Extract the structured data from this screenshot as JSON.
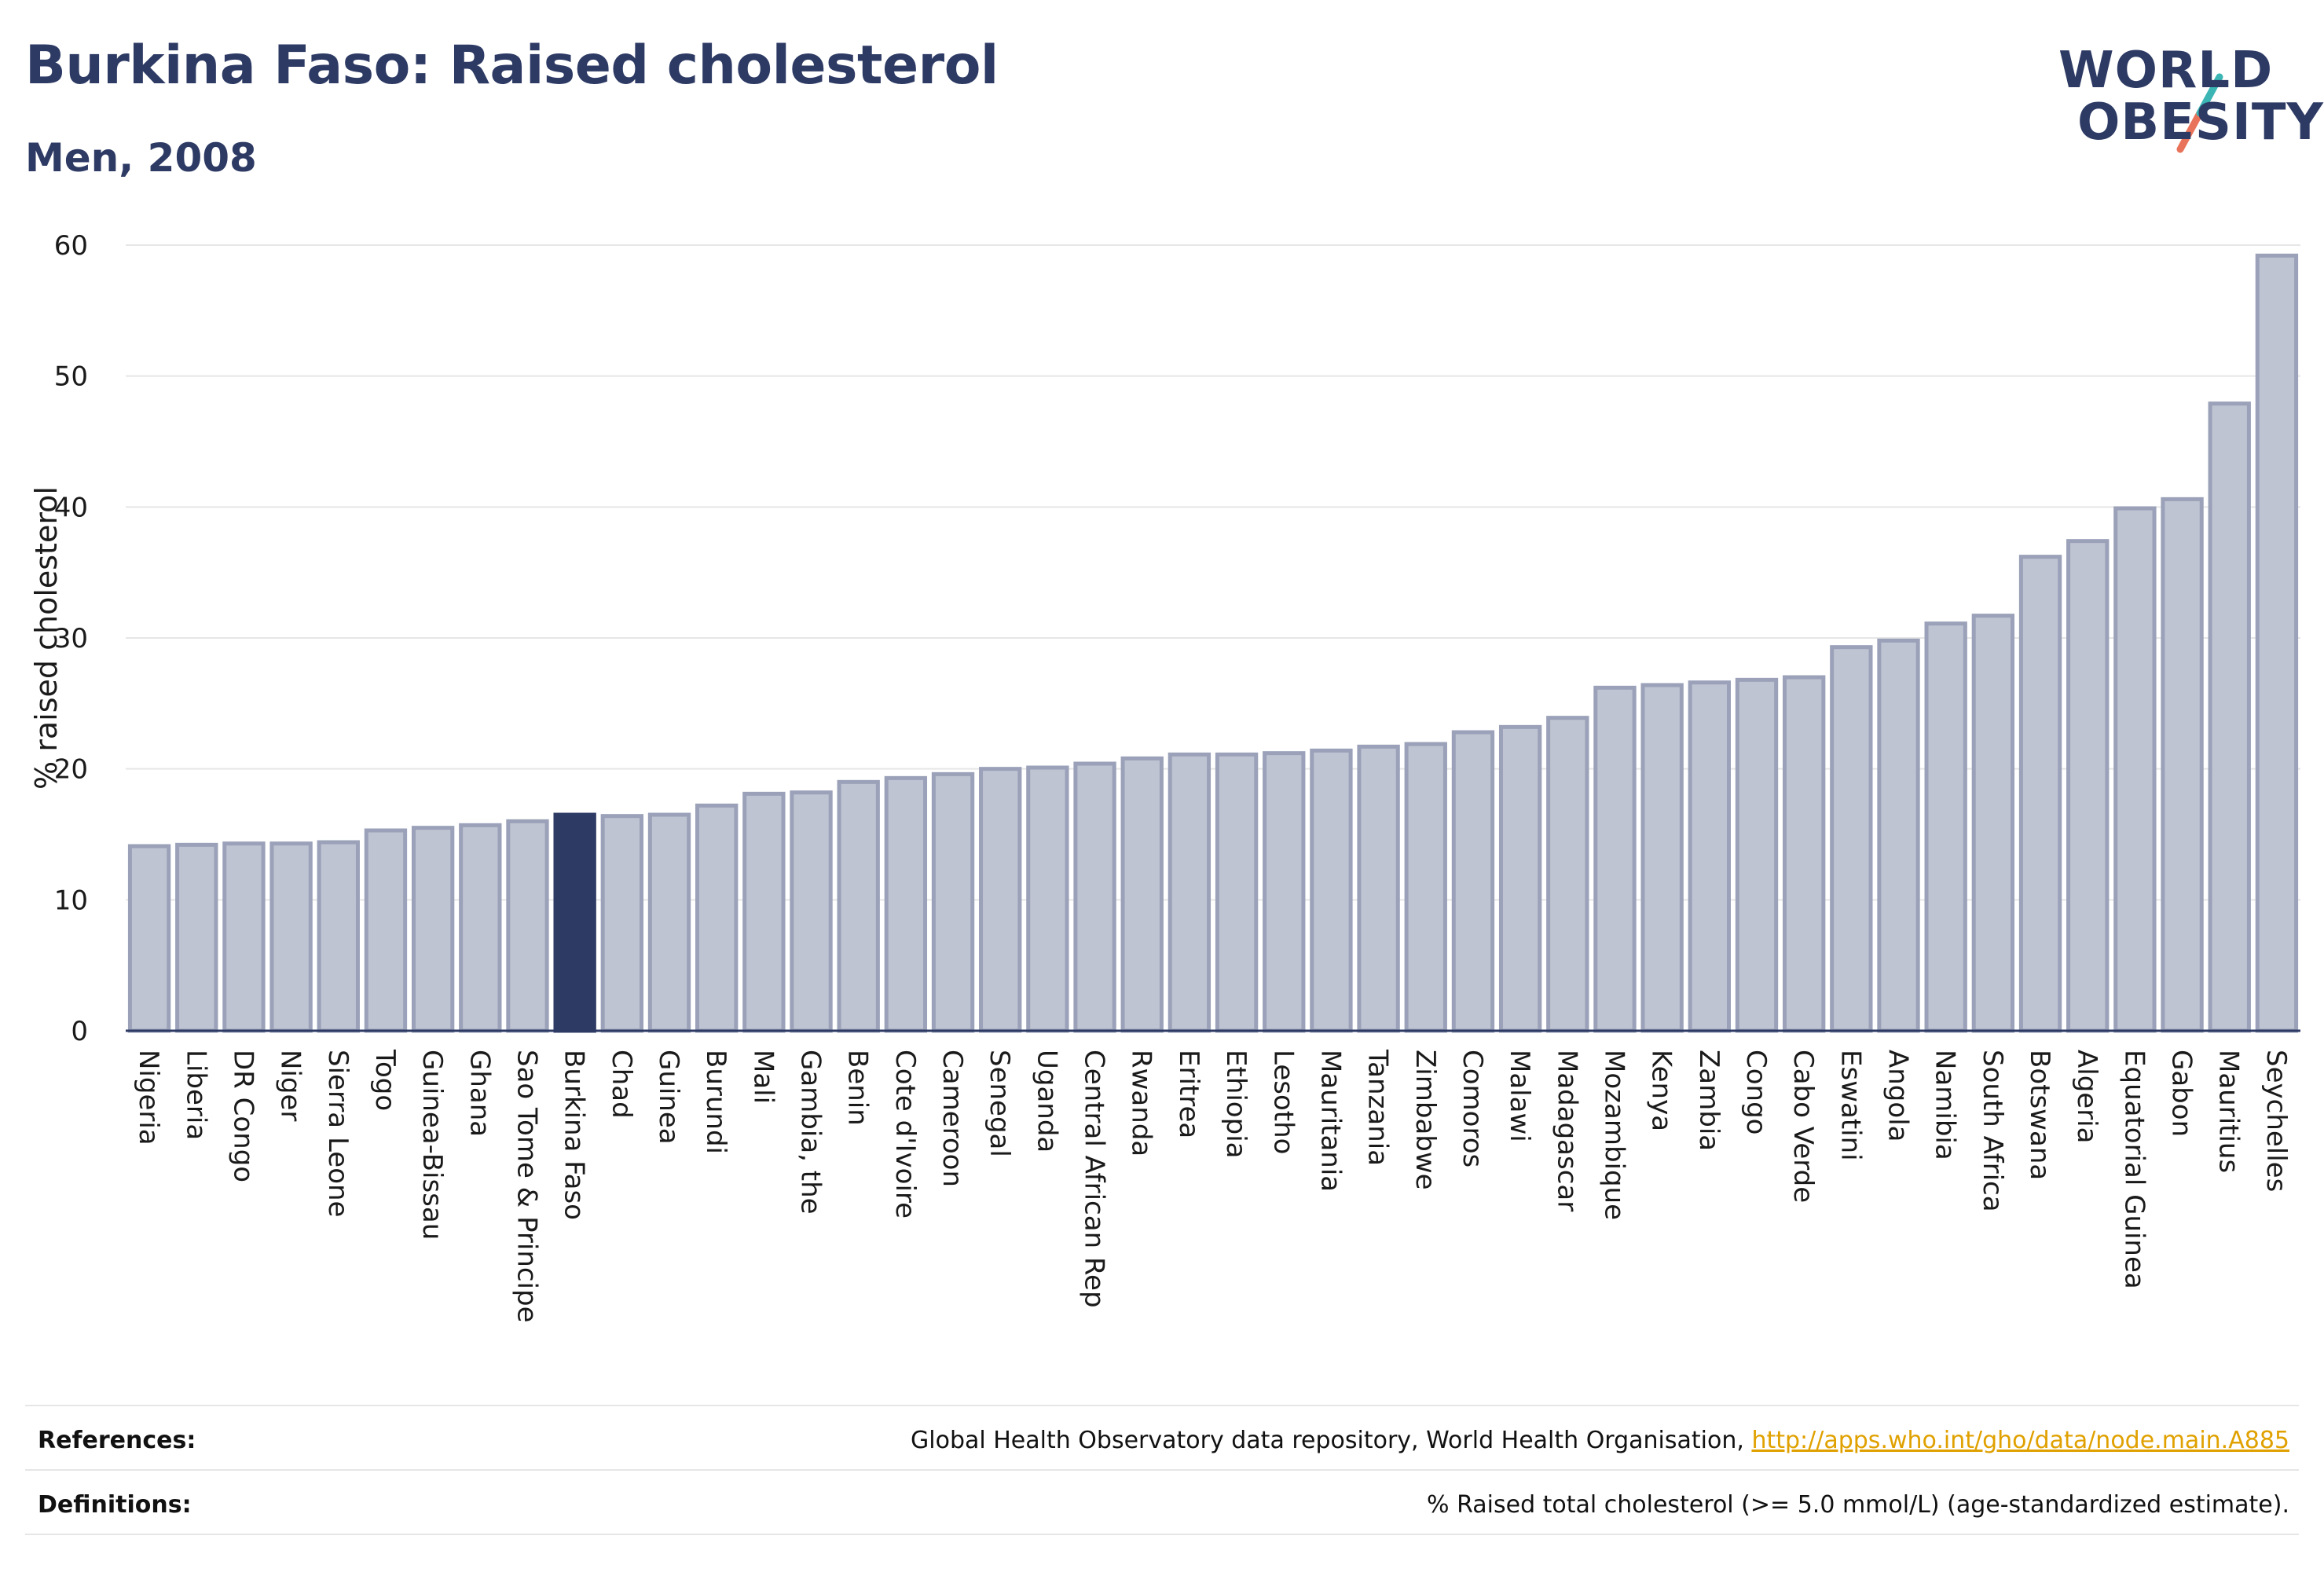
{
  "header": {
    "title": "Burkina Faso: Raised cholesterol",
    "subtitle": "Men, 2008"
  },
  "logo": {
    "line1": "WORLD",
    "line2": "OBESITY",
    "slash_colors": [
      "#3bb6b4",
      "#e8735a"
    ]
  },
  "colors": {
    "highlight_bar": "#2d3a64",
    "bar_fill": "#bfc4d2",
    "bar_stroke": "#9aa1b8",
    "grid": "#e6e6e6",
    "axis": "#2d3a64"
  },
  "chart_data": {
    "type": "bar",
    "title": "Burkina Faso: Raised cholesterol",
    "subtitle": "Men, 2008",
    "ylabel": "% raised cholesterol",
    "xlabel": "",
    "ylim": [
      0,
      60
    ],
    "yticks": [
      0,
      10,
      20,
      30,
      40,
      50,
      60
    ],
    "grid": true,
    "highlight": "Burkina Faso",
    "categories": [
      "Nigeria",
      "Liberia",
      "DR Congo",
      "Niger",
      "Sierra Leone",
      "Togo",
      "Guinea-Bissau",
      "Ghana",
      "Sao Tome & Principe",
      "Burkina Faso",
      "Chad",
      "Guinea",
      "Burundi",
      "Mali",
      "Gambia, the",
      "Benin",
      "Cote d'Ivoire",
      "Cameroon",
      "Senegal",
      "Uganda",
      "Central African Rep",
      "Rwanda",
      "Eritrea",
      "Ethiopia",
      "Lesotho",
      "Mauritania",
      "Tanzania",
      "Zimbabwe",
      "Comoros",
      "Malawi",
      "Madagascar",
      "Mozambique",
      "Kenya",
      "Zambia",
      "Congo",
      "Cabo Verde",
      "Eswatini",
      "Angola",
      "Namibia",
      "South Africa",
      "Botswana",
      "Algeria",
      "Equatorial Guinea",
      "Gabon",
      "Mauritius",
      "Seychelles"
    ],
    "values": [
      14.1,
      14.2,
      14.3,
      14.3,
      14.4,
      15.3,
      15.5,
      15.7,
      16.0,
      16.5,
      16.4,
      16.5,
      17.2,
      18.1,
      18.2,
      19.0,
      19.3,
      19.6,
      20.0,
      20.1,
      20.4,
      20.8,
      21.1,
      21.1,
      21.2,
      21.4,
      21.7,
      21.9,
      22.8,
      23.2,
      23.9,
      26.2,
      26.4,
      26.6,
      26.8,
      27.0,
      29.3,
      29.8,
      31.1,
      31.7,
      36.2,
      37.4,
      39.9,
      40.6,
      47.9,
      59.2
    ]
  },
  "footer": {
    "references_label": "References:",
    "references_text": "Global Health Observatory data repository, World Health Organisation, ",
    "references_link": "http://apps.who.int/gho/data/node.main.A885",
    "definitions_label": "Definitions:",
    "definitions_text": "% Raised total cholesterol (>= 5.0 mmol/L) (age-standardized estimate)."
  }
}
